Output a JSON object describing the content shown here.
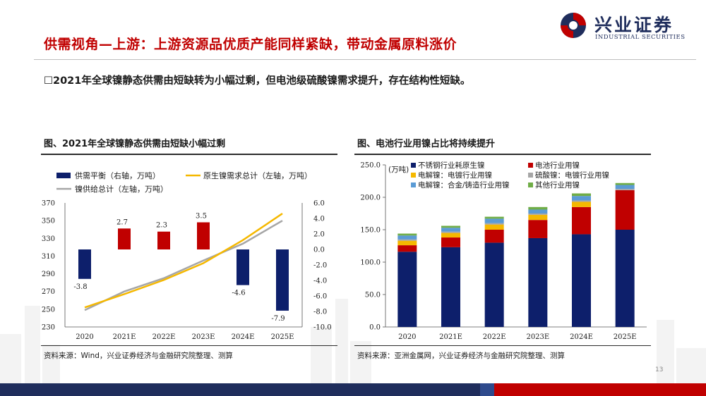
{
  "header": {
    "title": "供需视角—上游：上游资源品优质产能同样紧缺，带动金属原料涨价",
    "bullet": "2021年全球镍静态供需由短缺转为小幅过剩，但电池级硫酸镍需求提升，存在结构性短缺。"
  },
  "logo": {
    "cn": "兴业证券",
    "en": "INDUSTRIAL SECURITIES"
  },
  "page_number": "13",
  "colors": {
    "navy": "#0d1f6b",
    "red": "#c00000",
    "gold": "#f5b800",
    "gray": "#a6a6a6",
    "lightblue": "#5b9bd5",
    "green": "#70ad47"
  },
  "left_panel": {
    "title": "图、2021年全球镍静态供需由短缺小幅过剩",
    "source": "资料来源：Wind，兴业证券经济与金融研究院整理、测算"
  },
  "right_panel": {
    "title": "图、电池行业用镍占比将持续提升",
    "source": "资料来源：亚洲金属网，兴业证券经济与金融研究院整理、测算"
  },
  "chart_data": [
    {
      "type": "bar",
      "title": "图、2021年全球镍静态供需由短缺小幅过剩",
      "categories": [
        "2020",
        "2021E",
        "2022E",
        "2023E",
        "2024E",
        "2025E"
      ],
      "legend": [
        "供需平衡（右轴，万吨）",
        "原生镍需求总计（左轴，万吨）",
        "镍供给总计（左轴，万吨）"
      ],
      "left_axis": {
        "ticks": [
          "230",
          "250",
          "270",
          "290",
          "310",
          "330",
          "350",
          "370"
        ],
        "range": [
          230,
          370
        ]
      },
      "right_axis": {
        "ticks": [
          "6.0",
          "4.0",
          "2.0",
          "0.0",
          "-2.0",
          "-4.0",
          "-6.0",
          "-8.0",
          "-10.0"
        ],
        "range": [
          -10,
          6
        ]
      },
      "balance": {
        "name": "供需平衡（右轴，万吨）",
        "values": [
          -3.8,
          2.7,
          2.3,
          3.5,
          -4.6,
          -7.9
        ],
        "labels": [
          "-3.8",
          "2.7",
          "2.3",
          "3.5",
          "-4.6",
          "-7.9"
        ]
      },
      "demand": {
        "name": "原生镍需求总计（左轴，万吨）",
        "values": [
          252,
          267,
          283,
          302,
          328,
          358
        ]
      },
      "supply": {
        "name": "镍供给总计（左轴，万吨）",
        "values": [
          249,
          270,
          285,
          305,
          324,
          350
        ]
      }
    },
    {
      "type": "bar",
      "stacked": true,
      "title": "图、电池行业用镍占比将持续提升",
      "unit": "(万吨)",
      "categories": [
        "2020",
        "2021E",
        "2022E",
        "2023E",
        "2024E",
        "2025E"
      ],
      "y_ticks": [
        "0.0",
        "50.0",
        "100.0",
        "150.0",
        "200.0",
        "250.0"
      ],
      "ylim": [
        0,
        250
      ],
      "legend": [
        "不锈钢行业耗原生镍",
        "电池行业用镍",
        "电解镍：电镀行业用镍",
        "硫酸镍：电镀行业用镍",
        "电解镍：合金/铸造行业用镍",
        "其他行业用镍"
      ],
      "series": [
        {
          "name": "不锈钢行业耗原生镍",
          "values": [
            116,
            123,
            130,
            137,
            143,
            150
          ]
        },
        {
          "name": "电池行业用镍",
          "values": [
            10,
            15,
            20,
            28,
            42,
            61
          ]
        },
        {
          "name": "电解镍：电镀行业用镍",
          "values": [
            7,
            7,
            8,
            8,
            8,
            0
          ]
        },
        {
          "name": "硫酸镍：电镀行业用镍",
          "values": [
            2,
            2,
            2,
            2,
            2,
            2
          ]
        },
        {
          "name": "电解镍：合金/铸造行业用镍",
          "values": [
            6,
            6,
            7,
            6,
            7,
            6
          ]
        },
        {
          "name": "其他行业用镍",
          "values": [
            3,
            3,
            3,
            4,
            4,
            3
          ]
        }
      ]
    }
  ]
}
